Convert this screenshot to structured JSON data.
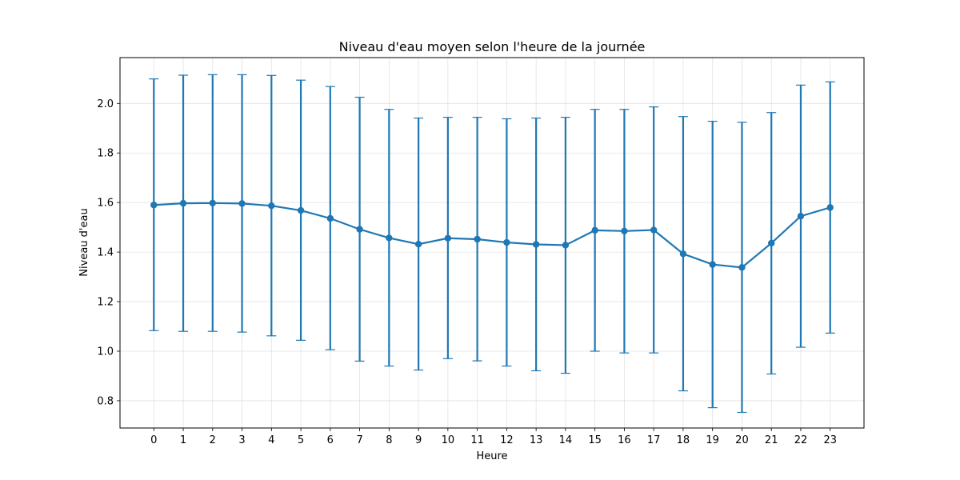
{
  "chart_data": {
    "type": "line",
    "title": "Niveau d'eau moyen selon l'heure de la journée",
    "xlabel": "Heure",
    "ylabel": "Niveau d'eau",
    "x": [
      0,
      1,
      2,
      3,
      4,
      5,
      6,
      7,
      8,
      9,
      10,
      11,
      12,
      13,
      14,
      15,
      16,
      17,
      18,
      19,
      20,
      21,
      22,
      23
    ],
    "x_tick_labels": [
      "0",
      "1",
      "2",
      "3",
      "4",
      "5",
      "6",
      "7",
      "8",
      "9",
      "10",
      "11",
      "12",
      "13",
      "14",
      "15",
      "16",
      "17",
      "18",
      "19",
      "20",
      "21",
      "22",
      "23"
    ],
    "y_ticks": [
      0.8,
      1.0,
      1.2,
      1.4,
      1.6,
      1.8,
      2.0
    ],
    "y_tick_labels": [
      "0.8",
      "1.0",
      "1.2",
      "1.4",
      "1.6",
      "1.8",
      "2.0"
    ],
    "ylim": [
      0.69,
      2.185
    ],
    "xlim": [
      -1.15,
      24.15
    ],
    "grid": true,
    "series": [
      {
        "color": "#1f77b4",
        "values": [
          1.59,
          1.597,
          1.598,
          1.596,
          1.587,
          1.568,
          1.536,
          1.492,
          1.457,
          1.432,
          1.456,
          1.452,
          1.439,
          1.431,
          1.428,
          1.488,
          1.485,
          1.489,
          1.393,
          1.35,
          1.338,
          1.436,
          1.545,
          1.58
        ],
        "error_low": [
          1.083,
          1.08,
          1.08,
          1.077,
          1.062,
          1.044,
          1.006,
          0.96,
          0.94,
          0.924,
          0.97,
          0.961,
          0.94,
          0.921,
          0.911,
          1.0,
          0.993,
          0.993,
          0.84,
          0.772,
          0.753,
          0.908,
          1.016,
          1.073
        ],
        "error_high": [
          2.099,
          2.114,
          2.116,
          2.116,
          2.113,
          2.094,
          2.068,
          2.025,
          1.976,
          1.941,
          1.944,
          1.944,
          1.938,
          1.941,
          1.944,
          1.976,
          1.976,
          1.986,
          1.947,
          1.928,
          1.924,
          1.963,
          2.074,
          2.087
        ]
      }
    ]
  }
}
